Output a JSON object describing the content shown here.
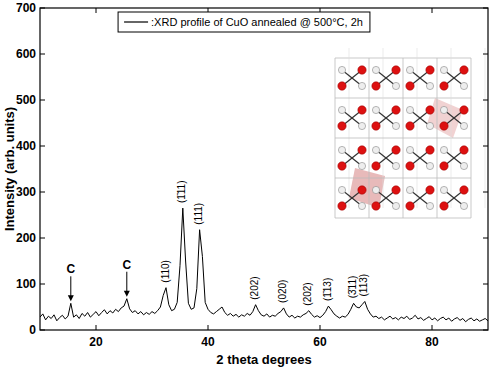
{
  "chart_data": {
    "type": "line",
    "x_label": "2 theta degrees",
    "y_label": "Intensity (arb. units)",
    "x": [
      10,
      10.5,
      11,
      11.5,
      12,
      12.5,
      13,
      13.5,
      14,
      14.5,
      15,
      15.5,
      16,
      16.5,
      17,
      17.5,
      18,
      18.5,
      19,
      19.5,
      20,
      20.5,
      21,
      21.5,
      22,
      22.5,
      23,
      23.5,
      24,
      24.5,
      25,
      25.5,
      26,
      26.5,
      27,
      27.5,
      28,
      28.5,
      29,
      29.5,
      30,
      30.5,
      31,
      31.5,
      32,
      32.5,
      33,
      33.5,
      34,
      34.5,
      35,
      35.5,
      36,
      36.5,
      37,
      37.5,
      38,
      38.5,
      39,
      39.5,
      40,
      40.5,
      41,
      41.5,
      42,
      42.5,
      43,
      43.5,
      44,
      44.5,
      45,
      45.5,
      46,
      46.5,
      47,
      47.5,
      48,
      48.5,
      49,
      49.5,
      50,
      50.5,
      51,
      51.5,
      52,
      52.5,
      53,
      53.5,
      54,
      54.5,
      55,
      55.5,
      56,
      56.5,
      57,
      57.5,
      58,
      58.5,
      59,
      59.5,
      60,
      60.5,
      61,
      61.5,
      62,
      62.5,
      63,
      63.5,
      64,
      64.5,
      65,
      65.5,
      66,
      66.5,
      67,
      67.5,
      68,
      68.5,
      69,
      69.5,
      70,
      70.5,
      71,
      71.5,
      72,
      72.5,
      73,
      73.5,
      74,
      74.5,
      75,
      75.5,
      76,
      76.5,
      77,
      77.5,
      78,
      78.5,
      79,
      79.5,
      80,
      80.5,
      81,
      81.5,
      82,
      82.5,
      83,
      83.5,
      84,
      84.5,
      85,
      85.5,
      86,
      86.5,
      87,
      87.5,
      88,
      88.5,
      89,
      89.5,
      90
    ],
    "series": [
      {
        "name": ":XRD profile of CuO annealed @ 500°C, 2h",
        "color": "#000000",
        "line_style": "solid",
        "values": [
          28,
          35,
          22,
          30,
          25,
          33,
          20,
          27,
          32,
          24,
          30,
          58,
          28,
          33,
          25,
          36,
          30,
          38,
          28,
          34,
          40,
          31,
          38,
          44,
          35,
          42,
          37,
          45,
          40,
          48,
          52,
          68,
          46,
          38,
          42,
          35,
          40,
          33,
          38,
          34,
          40,
          36,
          42,
          50,
          75,
          92,
          55,
          42,
          45,
          60,
          140,
          265,
          150,
          58,
          45,
          48,
          90,
          218,
          160,
          60,
          45,
          38,
          35,
          40,
          45,
          50,
          38,
          32,
          36,
          30,
          34,
          28,
          33,
          30,
          36,
          32,
          40,
          55,
          42,
          33,
          30,
          35,
          28,
          32,
          30,
          36,
          40,
          48,
          35,
          28,
          32,
          26,
          30,
          28,
          33,
          36,
          42,
          34,
          28,
          31,
          27,
          32,
          40,
          52,
          44,
          35,
          30,
          26,
          30,
          28,
          34,
          45,
          58,
          50,
          48,
          55,
          62,
          45,
          35,
          28,
          30,
          25,
          28,
          22,
          26,
          30,
          24,
          27,
          22,
          28,
          25,
          30,
          23,
          26,
          32,
          24,
          27,
          21,
          25,
          29,
          22,
          26,
          20,
          25,
          28,
          22,
          26,
          19,
          24,
          27,
          21,
          25,
          18,
          23,
          26,
          20,
          24,
          19,
          22,
          25,
          20
        ]
      }
    ],
    "xlim": [
      10,
      90
    ],
    "xticks": [
      20,
      40,
      60,
      80
    ],
    "ylim": [
      0,
      700
    ],
    "yticks": [
      0,
      100,
      200,
      300,
      400,
      500,
      600,
      700
    ],
    "grid": false,
    "legend": "top",
    "annotations": [
      {
        "text": "C",
        "x": 15.5
      },
      {
        "text": "C",
        "x": 25.5
      },
      {
        "text": "(110)",
        "x": 32.5
      },
      {
        "text": "(1̄11)",
        "x": 35.5
      },
      {
        "text": "(111)",
        "x": 38.5
      },
      {
        "text": "(202)",
        "x": 48.5
      },
      {
        "text": "(020)",
        "x": 53.5
      },
      {
        "text": "(202)",
        "x": 58
      },
      {
        "text": "(1̄13)",
        "x": 61.5
      },
      {
        "text": "(3̄11)",
        "x": 66
      },
      {
        "text": "(113)",
        "x": 68
      }
    ]
  }
}
